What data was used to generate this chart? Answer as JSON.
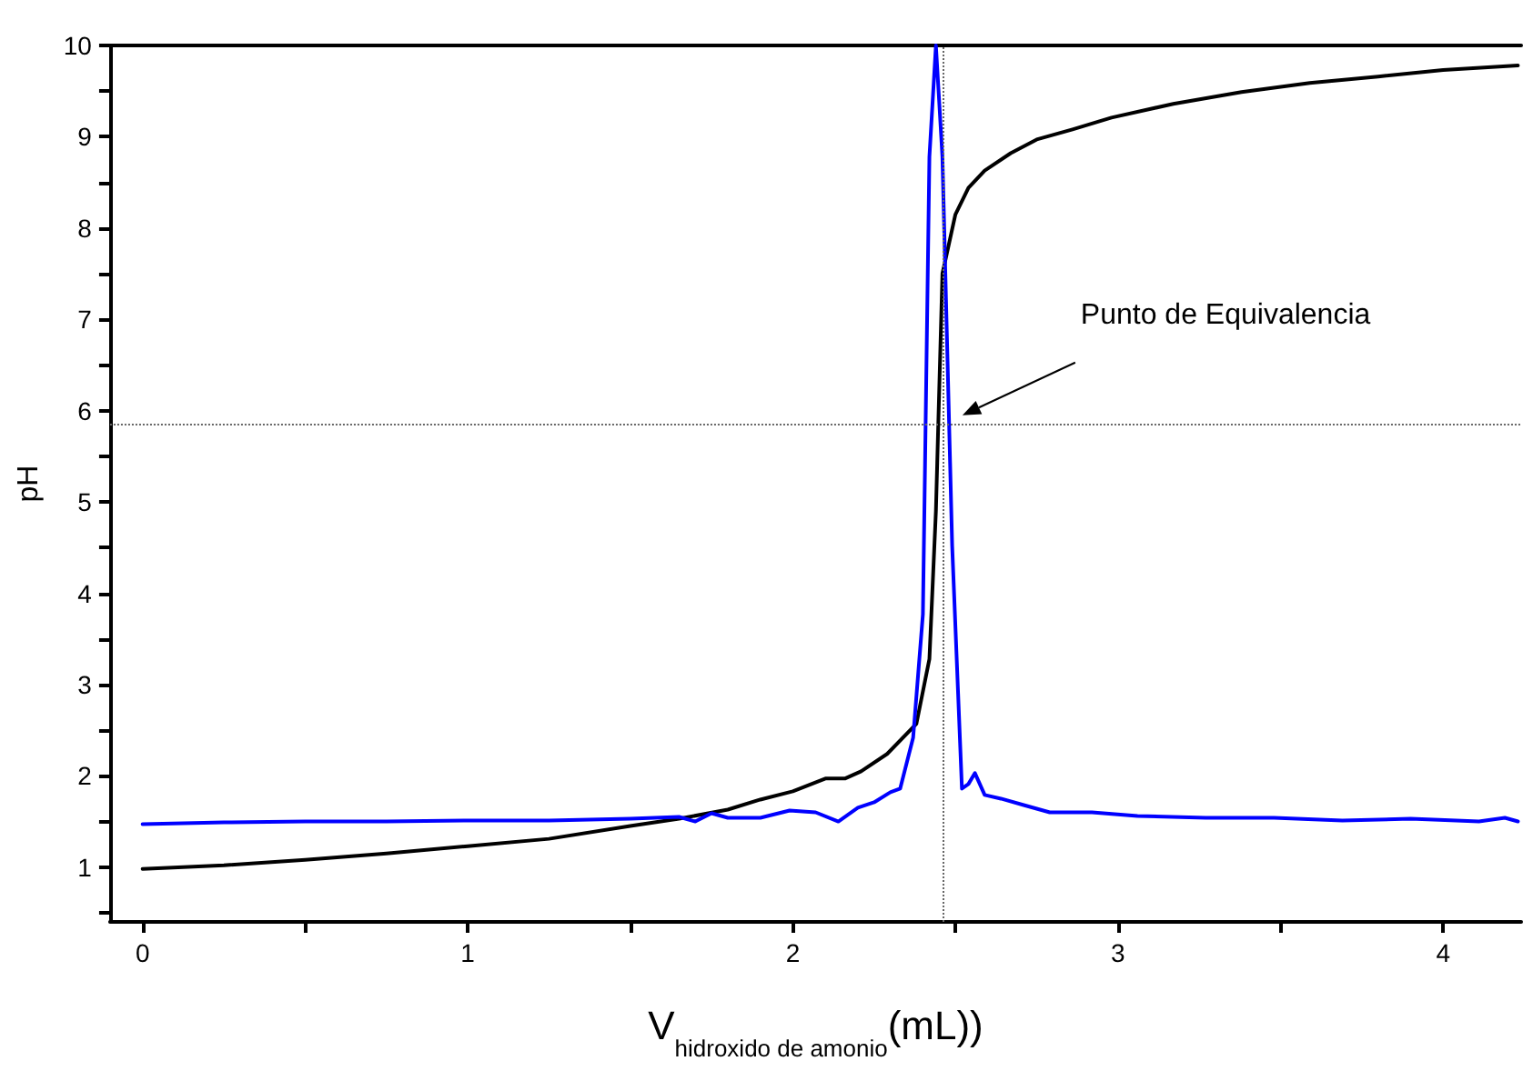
{
  "chart_data": {
    "type": "line",
    "xlabel": "V$_{hidroxido de amonio}$(mL))",
    "ylabel": "pH",
    "xlim": [
      -0.1,
      4.24
    ],
    "ylim": [
      0.4,
      10
    ],
    "xticks": [
      0,
      {
        "value": 0.5,
        "label": null
      },
      1,
      {
        "value": 1.5,
        "label": null
      },
      2,
      {
        "value": 2.5,
        "label": null
      },
      3,
      {
        "value": 3.5,
        "label": null
      },
      4
    ],
    "yticks": [
      {
        "value": 0.5,
        "label": null
      },
      1,
      {
        "value": 1.5,
        "label": null
      },
      2,
      {
        "value": 2.5,
        "label": null
      },
      3,
      {
        "value": 3.5,
        "label": null
      },
      4,
      {
        "value": 4.5,
        "label": null
      },
      5,
      {
        "value": 5.5,
        "label": null
      },
      6,
      {
        "value": 6.5,
        "label": null
      },
      7,
      {
        "value": 7.5,
        "label": null
      },
      8,
      {
        "value": 8.5,
        "label": null
      },
      9,
      {
        "value": 9.5,
        "label": null
      },
      10
    ],
    "grid": false,
    "line_style": "solid",
    "series": [
      {
        "color": "#000000",
        "x": [
          0,
          0.25,
          0.5,
          0.75,
          1.0,
          1.25,
          1.5,
          1.65,
          1.8,
          1.9,
          2.0,
          2.1,
          2.16,
          2.21,
          2.29,
          2.38,
          2.42,
          2.44,
          2.46,
          2.5,
          2.54,
          2.59,
          2.67,
          2.75,
          2.86,
          2.98,
          3.17,
          3.38,
          3.59,
          3.8,
          4.0,
          4.23
        ],
        "values": [
          0.98,
          1.02,
          1.08,
          1.15,
          1.23,
          1.31,
          1.45,
          1.53,
          1.63,
          1.74,
          1.83,
          1.97,
          1.97,
          2.05,
          2.24,
          2.57,
          3.28,
          4.9,
          7.5,
          8.15,
          8.44,
          8.63,
          8.82,
          8.97,
          9.08,
          9.21,
          9.36,
          9.49,
          9.59,
          9.66,
          9.73,
          9.78
        ]
      },
      {
        "color": "#0000ff",
        "x": [
          0,
          0.25,
          0.5,
          0.75,
          1.0,
          1.25,
          1.5,
          1.65,
          1.7,
          1.75,
          1.8,
          1.9,
          1.99,
          2.07,
          2.14,
          2.2,
          2.25,
          2.3,
          2.33,
          2.37,
          2.4,
          2.42,
          2.44,
          2.46,
          2.49,
          2.52,
          2.54,
          2.56,
          2.59,
          2.64,
          2.71,
          2.79,
          2.92,
          3.06,
          3.27,
          3.48,
          3.69,
          3.9,
          4.11,
          4.19,
          4.23
        ],
        "values": [
          1.47,
          1.49,
          1.5,
          1.5,
          1.51,
          1.51,
          1.53,
          1.55,
          1.5,
          1.59,
          1.54,
          1.54,
          1.62,
          1.6,
          1.5,
          1.65,
          1.71,
          1.82,
          1.86,
          2.42,
          3.77,
          8.78,
          10.0,
          8.78,
          4.52,
          1.86,
          1.91,
          2.03,
          1.79,
          1.75,
          1.68,
          1.6,
          1.6,
          1.56,
          1.54,
          1.54,
          1.51,
          1.53,
          1.5,
          1.54,
          1.5
        ]
      }
    ],
    "ref_lines": [
      {
        "axis": "x",
        "value": 2.46,
        "color": "#666666",
        "line_style": "dotted"
      },
      {
        "axis": "y",
        "value": 5.85,
        "color": "#666666",
        "line_style": "dotted"
      }
    ],
    "annotations": [
      "Punto de Equivalencia"
    ]
  }
}
